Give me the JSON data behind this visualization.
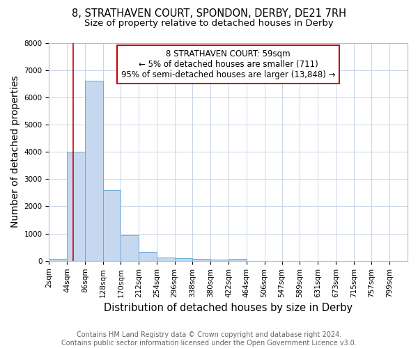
{
  "title_line1": "8, STRATHAVEN COURT, SPONDON, DERBY, DE21 7RH",
  "title_line2": "Size of property relative to detached houses in Derby",
  "xlabel": "Distribution of detached houses by size in Derby",
  "ylabel": "Number of detached properties",
  "footer_line1": "Contains HM Land Registry data © Crown copyright and database right 2024.",
  "footer_line2": "Contains public sector information licensed under the Open Government Licence v3.0.",
  "annotation_line1": "8 STRATHAVEN COURT: 59sqm",
  "annotation_line2": "← 5% of detached houses are smaller (711)",
  "annotation_line3": "95% of semi-detached houses are larger (13,848) →",
  "bar_edges": [
    2,
    44,
    86,
    128,
    170,
    212,
    254,
    296,
    338,
    380,
    422,
    464,
    506,
    547,
    589,
    631,
    673,
    715,
    757,
    799,
    841
  ],
  "bar_heights": [
    75,
    4000,
    6600,
    2600,
    950,
    320,
    130,
    110,
    75,
    50,
    75,
    0,
    0,
    0,
    0,
    0,
    0,
    0,
    0,
    0
  ],
  "bar_color": "#c5d8f0",
  "bar_edge_color": "#6aaad4",
  "property_line_x": 59,
  "property_line_color": "#cc0000",
  "ylim": [
    0,
    8000
  ],
  "annotation_box_color": "#cc0000",
  "background_color": "#ffffff",
  "grid_color": "#c8d4e8",
  "title_fontsize": 10.5,
  "subtitle_fontsize": 9.5,
  "axis_label_fontsize": 10,
  "tick_fontsize": 7.5,
  "annotation_fontsize": 8.5,
  "footer_fontsize": 7
}
